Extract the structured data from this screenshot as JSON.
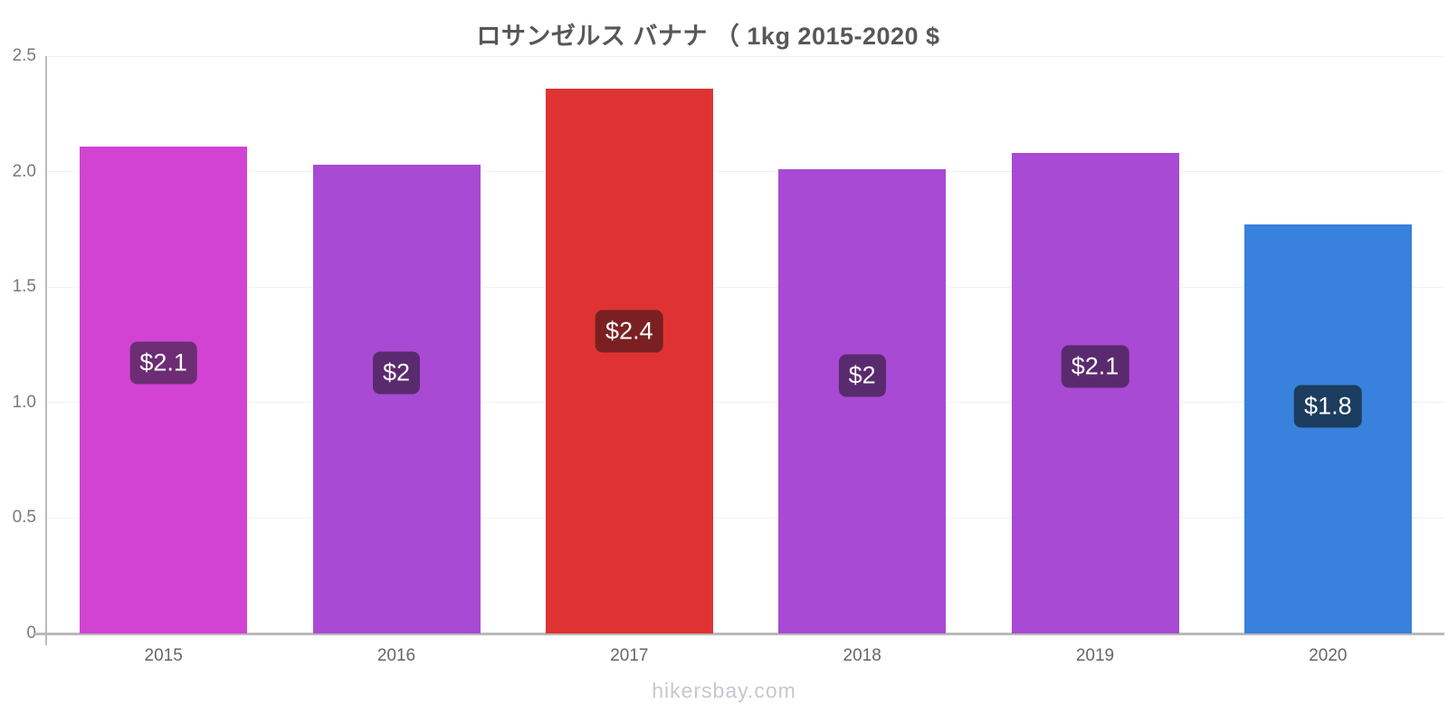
{
  "page": {
    "footer": "hikersbay.com"
  },
  "chart_data": {
    "type": "bar",
    "title": "ロサンゼルス バナナ （ 1kg 2015-2020 $",
    "categories": [
      "2015",
      "2016",
      "2017",
      "2018",
      "2019",
      "2020"
    ],
    "values": [
      2.11,
      2.03,
      2.36,
      2.01,
      2.08,
      1.77
    ],
    "value_labels": [
      "$2.1",
      "$2",
      "$2.4",
      "$2",
      "$2.1",
      "$1.8"
    ],
    "bar_colors": [
      "#d243d3",
      "#a84ad4",
      "#df3333",
      "#a84ad4",
      "#a84ad4",
      "#3881dc"
    ],
    "value_label_bg_colors": [
      "#6d2d74",
      "#5a2a6e",
      "#7a2022",
      "#5a2a6e",
      "#5a2a6e",
      "#1c3d5f"
    ],
    "value_label_text_color": "#ffffff",
    "ylim": [
      0,
      2.5
    ],
    "yticks": [
      0,
      0.5,
      1.0,
      1.5,
      2.0,
      2.5
    ],
    "ytick_labels": [
      "0",
      "0.5",
      "1.0",
      "1.5",
      "2.0",
      "2.5"
    ],
    "xlabel": "",
    "ylabel": "",
    "grid": "horizontal-faint",
    "legend": false,
    "source_watermark": "hikersbay.com"
  }
}
